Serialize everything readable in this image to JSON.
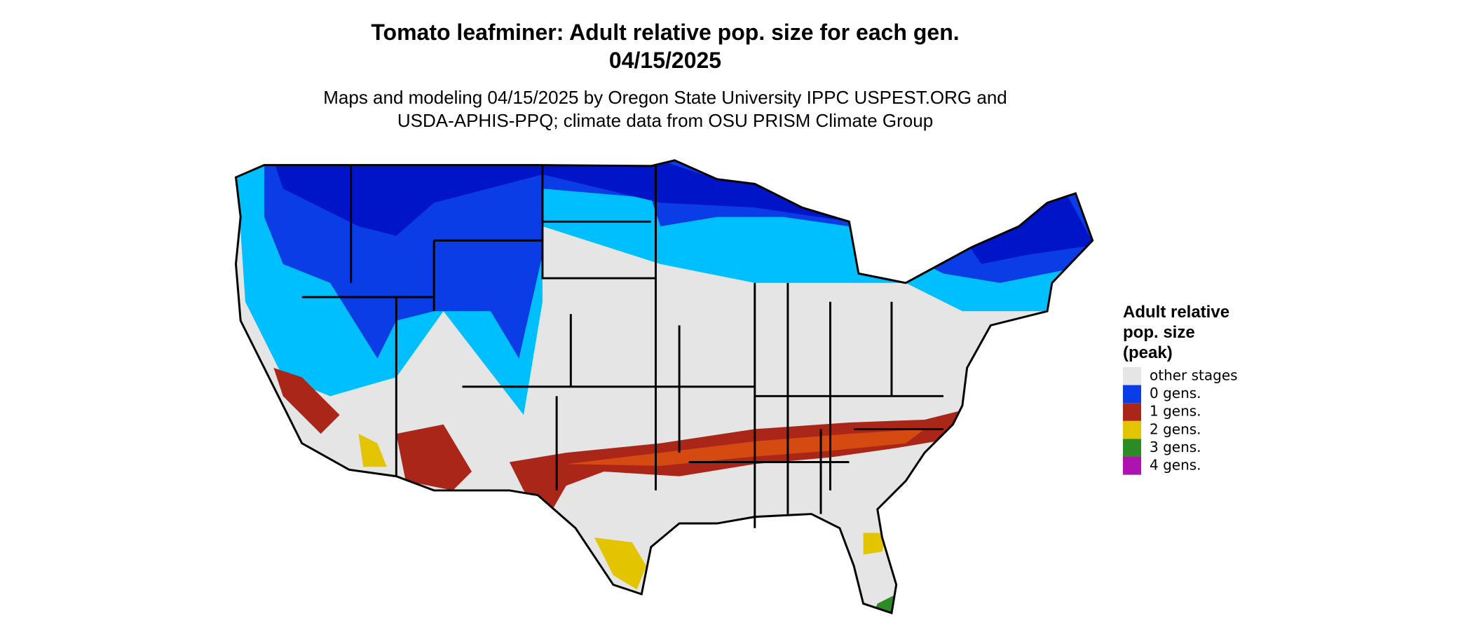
{
  "header": {
    "title": [
      "Tomato leafminer: Adult relative pop. size for each gen.",
      "04/15/2025"
    ],
    "subtitle": [
      "Maps and modeling 04/15/2025 by Oregon State University IPPC USPEST.ORG and",
      "USDA-APHIS-PPQ; climate data from OSU PRISM Climate Group"
    ]
  },
  "legend": {
    "title": [
      "Adult relative",
      "pop. size",
      "(peak)"
    ],
    "items": [
      {
        "label": "other stages",
        "color": "#e5e5e5"
      },
      {
        "label": "0 gens.",
        "color": "#0b3de6"
      },
      {
        "label": "1 gens.",
        "color": "#a92618"
      },
      {
        "label": "2 gens.",
        "color": "#e2c400"
      },
      {
        "label": "3 gens.",
        "color": "#2b8b24"
      },
      {
        "label": "4 gens.",
        "color": "#ae12b0"
      }
    ]
  }
}
